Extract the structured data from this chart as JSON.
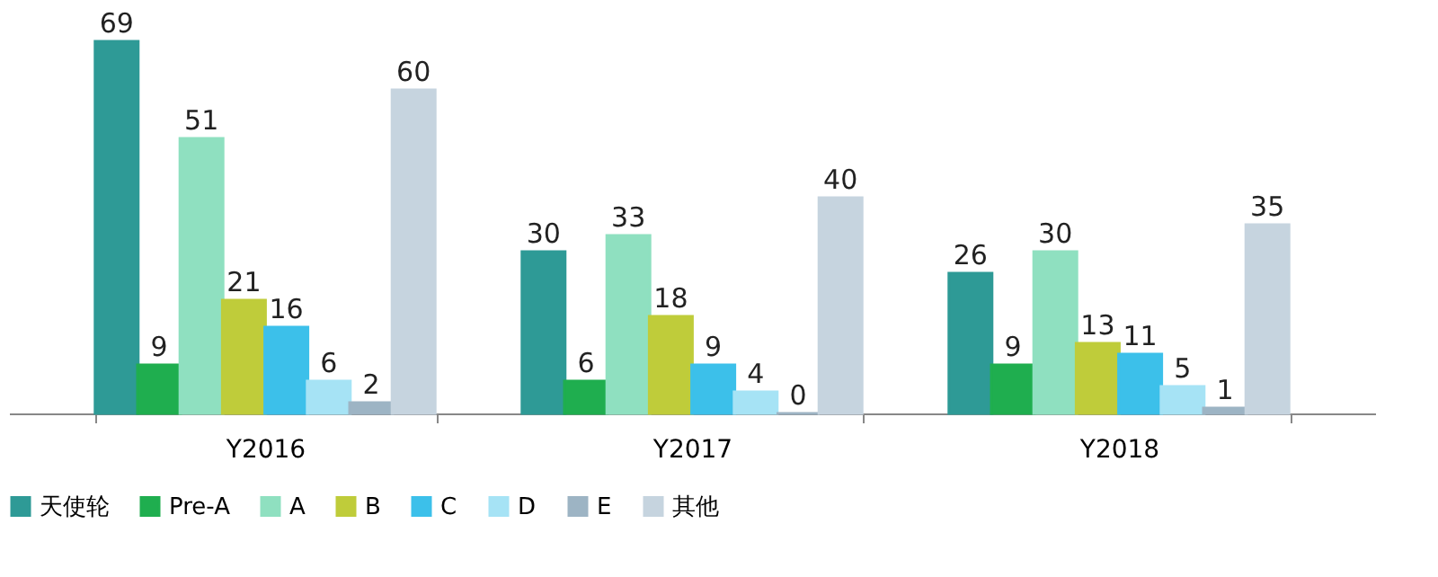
{
  "chart_data": {
    "type": "bar",
    "categories": [
      "Y2016",
      "Y2017",
      "Y2018"
    ],
    "series": [
      {
        "name": "天使轮",
        "color": "#2e9a96",
        "values": [
          69,
          30,
          26
        ]
      },
      {
        "name": "Pre-A",
        "color": "#1fae4f",
        "values": [
          9,
          6,
          9
        ]
      },
      {
        "name": "A",
        "color": "#8fe0c0",
        "values": [
          51,
          33,
          30
        ]
      },
      {
        "name": "B",
        "color": "#bfcc3a",
        "values": [
          21,
          18,
          13
        ]
      },
      {
        "name": "C",
        "color": "#3cc0ea",
        "values": [
          16,
          9,
          11
        ]
      },
      {
        "name": "D",
        "color": "#a6e3f5",
        "values": [
          6,
          4,
          5
        ]
      },
      {
        "name": "E",
        "color": "#9db4c4",
        "values": [
          2,
          0,
          1
        ]
      },
      {
        "name": "其他",
        "color": "#c6d4df",
        "values": [
          60,
          40,
          35
        ]
      }
    ],
    "data_labels": true,
    "legend": "bottom",
    "grid": false
  }
}
